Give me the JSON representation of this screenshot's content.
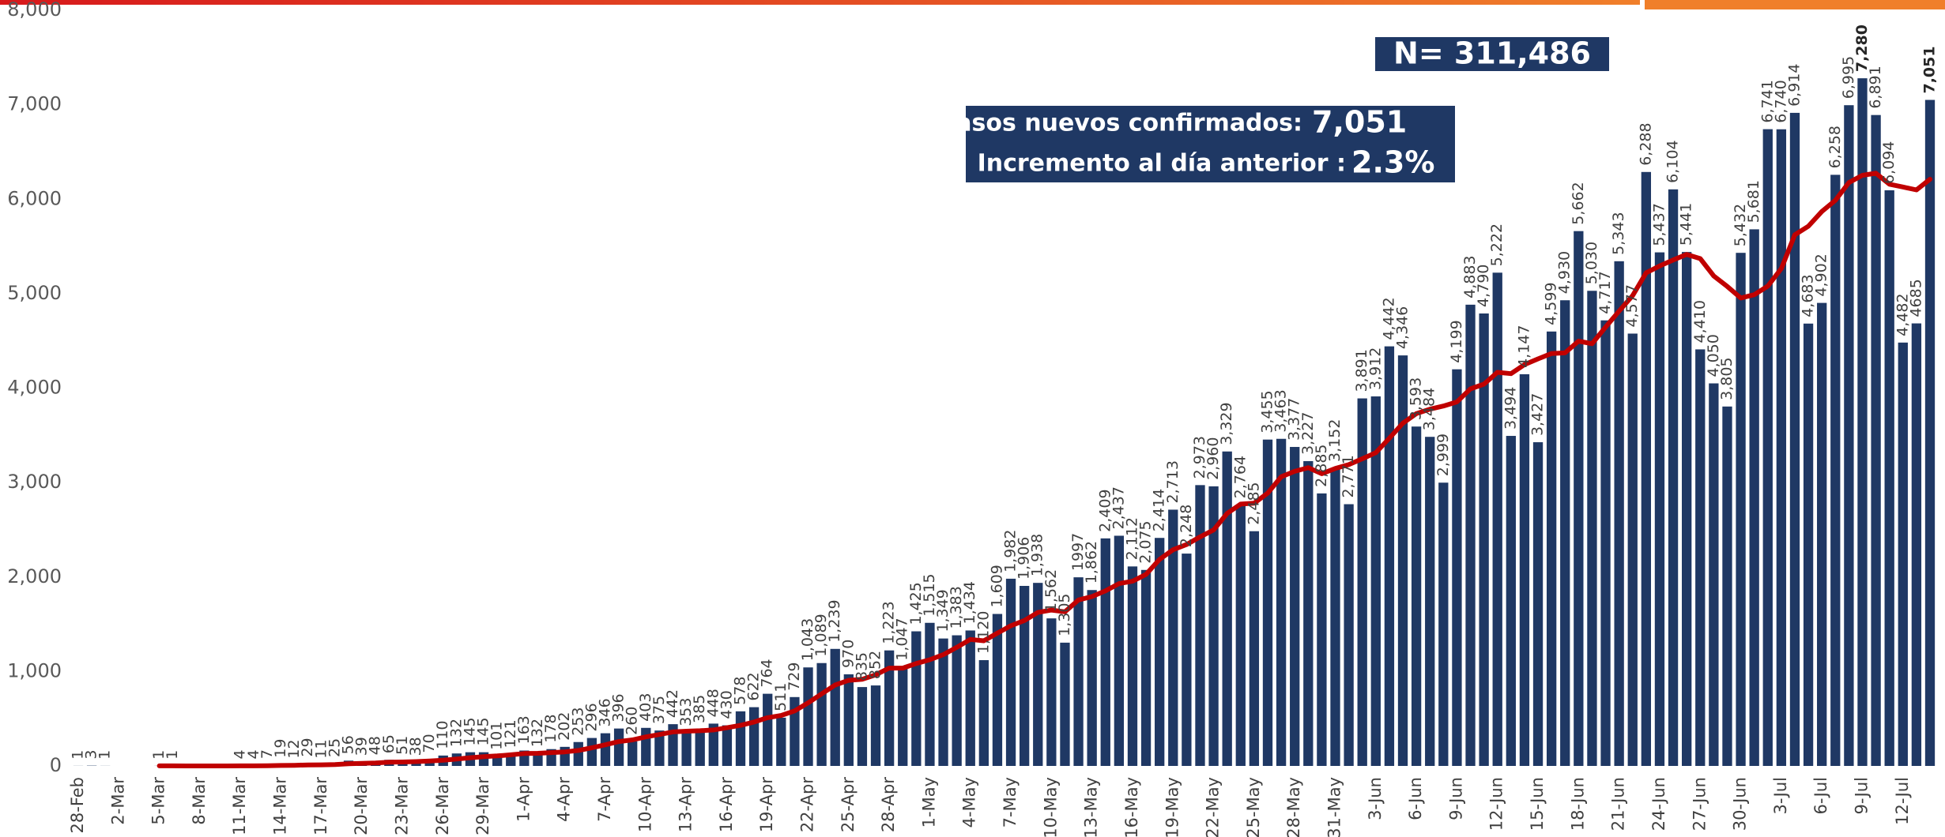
{
  "chart_data": {
    "type": "bar",
    "annotations": {
      "total": "N= 311,486",
      "new_label": "Casos nuevos confirmados:",
      "new_value": "7,051",
      "inc_label": "Incremento al día anterior :",
      "inc_value": "2.3%"
    },
    "categories": [
      "28-Feb",
      null,
      null,
      "2-Mar",
      null,
      null,
      "5-Mar",
      null,
      null,
      "8-Mar",
      null,
      null,
      "11-Mar",
      null,
      null,
      "14-Mar",
      null,
      null,
      "17-Mar",
      null,
      null,
      "20-Mar",
      null,
      null,
      "23-Mar",
      null,
      null,
      "26-Mar",
      null,
      null,
      "29-Mar",
      null,
      null,
      "1-Apr",
      null,
      null,
      "4-Apr",
      null,
      null,
      "7-Apr",
      null,
      null,
      "10-Apr",
      null,
      null,
      "13-Apr",
      null,
      null,
      "16-Apr",
      null,
      null,
      "19-Apr",
      null,
      null,
      "22-Apr",
      null,
      null,
      "25-Apr",
      null,
      null,
      "28-Apr",
      null,
      null,
      "1-May",
      null,
      null,
      "4-May",
      null,
      null,
      "7-May",
      null,
      null,
      "10-May",
      null,
      null,
      "13-May",
      null,
      null,
      "16-May",
      null,
      null,
      "19-May",
      null,
      null,
      "22-May",
      null,
      null,
      "25-May",
      null,
      null,
      "28-May",
      null,
      null,
      "31-May",
      null,
      null,
      "3-Jun",
      null,
      null,
      "6-Jun",
      null,
      null,
      "9-Jun",
      null,
      null,
      "12-Jun",
      null,
      null,
      "15-Jun",
      null,
      null,
      "18-Jun",
      null,
      null,
      "21-Jun",
      null,
      null,
      "24-Jun",
      null,
      null,
      "27-Jun",
      null,
      null,
      "30-Jun",
      null,
      null,
      "3-Jul",
      null,
      null,
      "6-Jul",
      null,
      null,
      "9-Jul",
      null,
      null,
      "12-Jul",
      null,
      null
    ],
    "series": [
      {
        "type": "bar",
        "color": "#1f3864",
        "values": [
          1,
          3,
          1,
          0,
          0,
          0,
          1,
          1,
          0,
          0,
          0,
          0,
          4,
          4,
          7,
          19,
          12,
          29,
          11,
          25,
          56,
          39,
          48,
          65,
          51,
          38,
          70,
          110,
          132,
          145,
          145,
          101,
          121,
          163,
          132,
          178,
          202,
          253,
          296,
          346,
          396,
          260,
          403,
          375,
          442,
          353,
          385,
          448,
          430,
          578,
          622,
          764,
          511,
          729,
          1043,
          1089,
          1239,
          970,
          835,
          852,
          1223,
          1047,
          1425,
          1515,
          1349,
          1383,
          1434,
          1120,
          1609,
          1982,
          1906,
          1938,
          1562,
          1305,
          1997,
          1862,
          2409,
          2437,
          2112,
          2075,
          2414,
          2713,
          2248,
          2973,
          2960,
          3329,
          2764,
          2485,
          3455,
          3463,
          3377,
          3227,
          2885,
          3152,
          2771,
          3891,
          3912,
          4442,
          4346,
          3593,
          3484,
          2999,
          4199,
          4883,
          4790,
          5222,
          3494,
          4147,
          3427,
          4599,
          4930,
          5662,
          5030,
          4717,
          5343,
          4577,
          6288,
          5437,
          6104,
          5441,
          4410,
          4050,
          3805,
          5432,
          5681,
          6741,
          6740,
          6914,
          4683,
          4902,
          6258,
          6995,
          7280,
          6891,
          6094,
          4482,
          4685,
          7051
        ],
        "value_labels": [
          "1",
          "3",
          "1",
          null,
          null,
          null,
          "1",
          "1",
          null,
          null,
          null,
          null,
          "4",
          "4",
          "7",
          "19",
          "12",
          "29",
          "11",
          "25",
          "56",
          "39",
          "48",
          "65",
          "51",
          "38",
          "70",
          "110",
          "132",
          "145",
          "145",
          "101",
          "121",
          "163",
          "132",
          "178",
          "202",
          "253",
          "296",
          "346",
          "396",
          "260",
          "403",
          "375",
          "442",
          "353",
          "385",
          "448",
          "430",
          "578",
          "622",
          "764",
          "511",
          "729",
          "1,043",
          "1,089",
          "1,239",
          "970",
          "835",
          "852",
          "1,223",
          "1,047",
          "1,425",
          "1,515",
          "1,349",
          "1,383",
          "1,434",
          "1,120",
          "1,609",
          "1,982",
          "1,906",
          "1,938",
          "1,562",
          "1,305",
          "1997",
          "1,862",
          "2,409",
          "2,437",
          "2,112",
          "2,075",
          "2,414",
          "2,713",
          "2,248",
          "2,973",
          "2,960",
          "3,329",
          "2,764",
          "2,485",
          "3,455",
          "3,463",
          "3,377",
          "3,227",
          "2,885",
          "3,152",
          "2,771",
          "3,891",
          "3,912",
          "4,442",
          "4,346",
          "3,593",
          "3,484",
          "2,999",
          "4,199",
          "4,883",
          "4,790",
          "5,222",
          "3,494",
          "4,147",
          "3,427",
          "4,599",
          "4,930",
          "5,662",
          "5,030",
          "4,717",
          "5,343",
          "4,577",
          "6,288",
          "5,437",
          "6,104",
          "5,441",
          "4,410",
          "4,050",
          "3,805",
          "5,432",
          "5,681",
          "6,741",
          "6,740",
          "6,914",
          "4,683",
          "4,902",
          "6,258",
          "6,995",
          "7,280",
          "6,891",
          "6,094",
          "4,482",
          "4685",
          "7,051"
        ]
      },
      {
        "type": "line",
        "color": "#c00000",
        "values": [
          null,
          null,
          null,
          null,
          null,
          null,
          1,
          1,
          0,
          0,
          0,
          0,
          1,
          1,
          2,
          5,
          7,
          11,
          12,
          15,
          23,
          27,
          31,
          39,
          42,
          46,
          52,
          60,
          73,
          87,
          99,
          106,
          118,
          131,
          134,
          141,
          149,
          164,
          192,
          224,
          258,
          276,
          308,
          333,
          360,
          368,
          373,
          381,
          405,
          430,
          465,
          511,
          534,
          583,
          668,
          762,
          857,
          906,
          917,
          965,
          1036,
          1036,
          1084,
          1124,
          1178,
          1256,
          1339,
          1325,
          1405,
          1485,
          1540,
          1625,
          1650,
          1632,
          1757,
          1793,
          1854,
          1930,
          1955,
          2028,
          2187,
          2289,
          2344,
          2425,
          2499,
          2673,
          2772,
          2782,
          2888,
          3061,
          3119,
          3157,
          3094,
          3149,
          3190,
          3252,
          3316,
          3469,
          3628,
          3730,
          3777,
          3810,
          3854,
          3992,
          4042,
          4167,
          4153,
          4248,
          4309,
          4366,
          4373,
          4497,
          4470,
          4645,
          4815,
          4980,
          5221,
          5293,
          5357,
          5415,
          5371,
          5187,
          5076,
          4954,
          4989,
          5080,
          5266,
          5623,
          5714,
          5870,
          5988,
          6176,
          6253,
          6275,
          6158,
          6129,
          6098,
          6211
        ]
      }
    ],
    "ylim": [
      0,
      8000
    ],
    "yticks": [
      0,
      {
        "value": 1000,
        "label": "1,000"
      },
      {
        "value": 2000,
        "label": "2,000"
      },
      {
        "value": 3000,
        "label": "3,000"
      },
      {
        "value": 4000,
        "label": "4,000"
      },
      {
        "value": 5000,
        "label": "5,000"
      },
      {
        "value": 6000,
        "label": "6,000"
      },
      {
        "value": 7000,
        "label": "7,000"
      },
      {
        "value": 8000,
        "label": "8,000"
      }
    ],
    "grid": false
  }
}
